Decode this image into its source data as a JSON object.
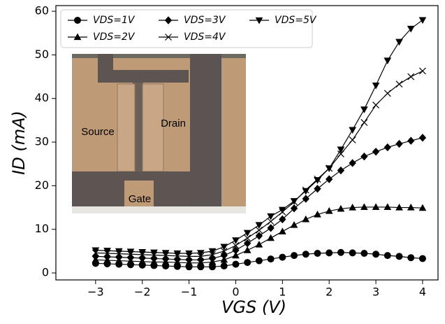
{
  "chart_data": {
    "type": "line",
    "xlabel": "VGS (V)",
    "ylabel": "ID (mA)",
    "x": [
      -3,
      -2.75,
      -2.5,
      -2.25,
      -2,
      -1.75,
      -1.5,
      -1.25,
      -1,
      -0.75,
      -0.5,
      -0.25,
      0,
      0.25,
      0.5,
      0.75,
      1,
      1.25,
      1.5,
      1.75,
      2,
      2.25,
      2.5,
      2.75,
      3,
      3.25,
      3.5,
      3.75,
      4
    ],
    "series": [
      {
        "name": "VDS=1V",
        "color": "#000000",
        "marker": "circle",
        "values": [
          2.2,
          2.1,
          2.0,
          1.9,
          1.8,
          1.7,
          1.6,
          1.5,
          1.4,
          1.4,
          1.4,
          1.6,
          2.0,
          2.4,
          2.8,
          3.2,
          3.6,
          4.0,
          4.3,
          4.5,
          4.6,
          4.7,
          4.6,
          4.5,
          4.3,
          4.0,
          3.8,
          3.5,
          3.3
        ]
      },
      {
        "name": "VDS=2V",
        "color": "#000000",
        "marker": "triangle-up",
        "values": [
          3.0,
          2.9,
          2.8,
          2.7,
          2.6,
          2.5,
          2.5,
          2.4,
          2.3,
          2.3,
          2.5,
          3.0,
          4.0,
          5.2,
          6.5,
          8.0,
          9.5,
          11.0,
          12.3,
          13.4,
          14.2,
          14.7,
          15.0,
          15.1,
          15.1,
          15.1,
          15.0,
          15.0,
          14.9
        ]
      },
      {
        "name": "VDS=3V",
        "color": "#000000",
        "marker": "diamond",
        "values": [
          3.8,
          3.7,
          3.6,
          3.5,
          3.4,
          3.3,
          3.2,
          3.1,
          3.0,
          3.0,
          3.3,
          4.0,
          5.2,
          6.8,
          8.5,
          10.3,
          12.3,
          14.8,
          17.0,
          19.3,
          21.5,
          23.5,
          25.2,
          26.7,
          27.8,
          28.8,
          29.6,
          30.3,
          31.0
        ]
      },
      {
        "name": "VDS=4V",
        "color": "#000000",
        "marker": "x",
        "values": [
          4.6,
          4.5,
          4.4,
          4.3,
          4.2,
          4.1,
          4.0,
          3.9,
          3.8,
          3.8,
          4.2,
          5.0,
          6.3,
          8.0,
          9.8,
          11.8,
          14.0,
          16.3,
          19.0,
          21.5,
          24.0,
          27.3,
          30.5,
          34.5,
          38.5,
          41.2,
          43.3,
          45.0,
          46.3
        ]
      },
      {
        "name": "VDS=5V",
        "color": "#000000",
        "marker": "triangle-down",
        "values": [
          5.2,
          5.1,
          5.0,
          4.9,
          4.8,
          4.7,
          4.6,
          4.5,
          4.5,
          4.6,
          5.0,
          6.0,
          7.5,
          9.2,
          11.0,
          13.0,
          14.5,
          16.5,
          18.8,
          21.3,
          24.0,
          28.3,
          32.8,
          37.5,
          43.0,
          48.7,
          53.0,
          56.0,
          58.0
        ]
      }
    ],
    "xlim": [
      -3.85,
      4.33
    ],
    "ylim": [
      -1.6,
      61.3
    ],
    "xticks": [
      {
        "value": -3,
        "label": "−3"
      },
      {
        "value": -2,
        "label": "−2"
      },
      {
        "value": -1,
        "label": "−1"
      },
      0,
      1,
      2,
      3,
      4
    ],
    "yticks": [
      0,
      10,
      20,
      30,
      40,
      50,
      60
    ],
    "legend": "upper left",
    "inset_labels": [
      "Source",
      "Drain",
      "Gate"
    ]
  }
}
